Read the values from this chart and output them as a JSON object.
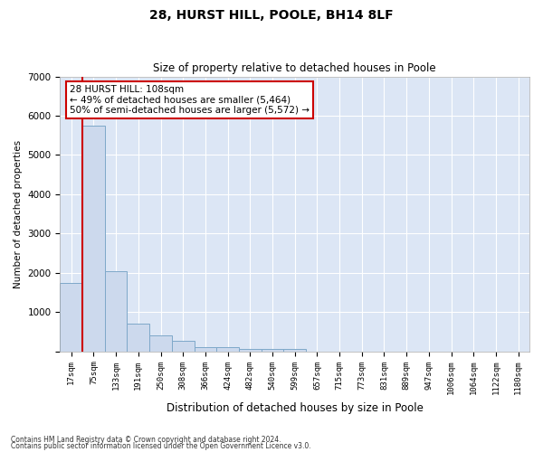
{
  "title1": "28, HURST HILL, POOLE, BH14 8LF",
  "title2": "Size of property relative to detached houses in Poole",
  "xlabel": "Distribution of detached houses by size in Poole",
  "ylabel": "Number of detached properties",
  "categories": [
    "17sqm",
    "75sqm",
    "133sqm",
    "191sqm",
    "250sqm",
    "308sqm",
    "366sqm",
    "424sqm",
    "482sqm",
    "540sqm",
    "599sqm",
    "657sqm",
    "715sqm",
    "773sqm",
    "831sqm",
    "889sqm",
    "947sqm",
    "1006sqm",
    "1064sqm",
    "1122sqm",
    "1180sqm"
  ],
  "values": [
    1750,
    5750,
    2050,
    700,
    400,
    270,
    120,
    100,
    75,
    60,
    55,
    0,
    0,
    0,
    0,
    0,
    0,
    0,
    0,
    0,
    0
  ],
  "bar_color": "#ccd9ed",
  "bar_edge_color": "#7ea8c9",
  "vline_color": "#cc0000",
  "vline_x": 1.0,
  "annotation_text": "28 HURST HILL: 108sqm\n← 49% of detached houses are smaller (5,464)\n50% of semi-detached houses are larger (5,572) →",
  "annotation_box_facecolor": "#ffffff",
  "annotation_box_edgecolor": "#cc0000",
  "ylim": [
    0,
    7000
  ],
  "yticks": [
    0,
    1000,
    2000,
    3000,
    4000,
    5000,
    6000,
    7000
  ],
  "background_color": "#dce6f5",
  "grid_color": "#ffffff",
  "footer1": "Contains HM Land Registry data © Crown copyright and database right 2024.",
  "footer2": "Contains public sector information licensed under the Open Government Licence v3.0."
}
